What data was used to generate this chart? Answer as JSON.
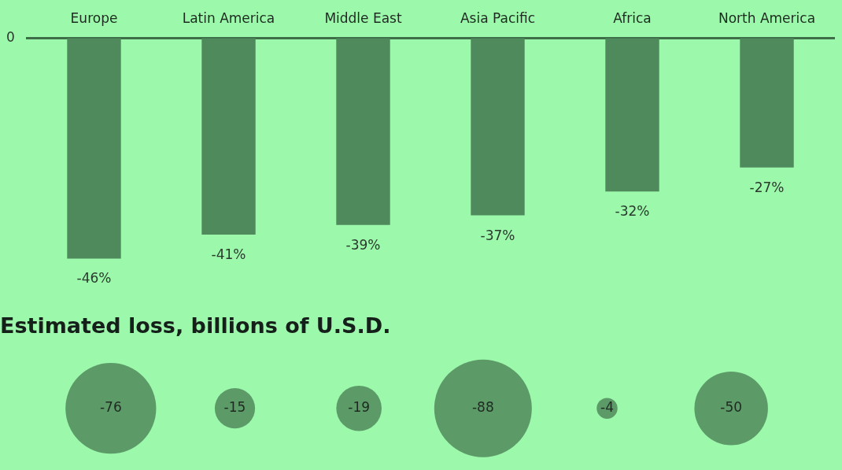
{
  "chart_data": [
    {
      "type": "bar",
      "categories": [
        "Europe",
        "Latin America",
        "Middle East",
        "Asia Pacific",
        "Africa",
        "North America"
      ],
      "values": [
        -46,
        -41,
        -39,
        -37,
        -32,
        -27
      ],
      "value_labels": [
        "-46%",
        "-41%",
        "-39%",
        "-37%",
        "-32%",
        "-27%"
      ],
      "annotations": [
        "0"
      ],
      "color": "#4f8a5c",
      "grid": false,
      "legend": false
    },
    {
      "type": "other",
      "title": "Estimated loss, billions of U.S.D.",
      "values": [
        -76,
        -15,
        -19,
        -88,
        -4,
        -50
      ],
      "data_labels": true,
      "color": "#5c9a68"
    }
  ]
}
